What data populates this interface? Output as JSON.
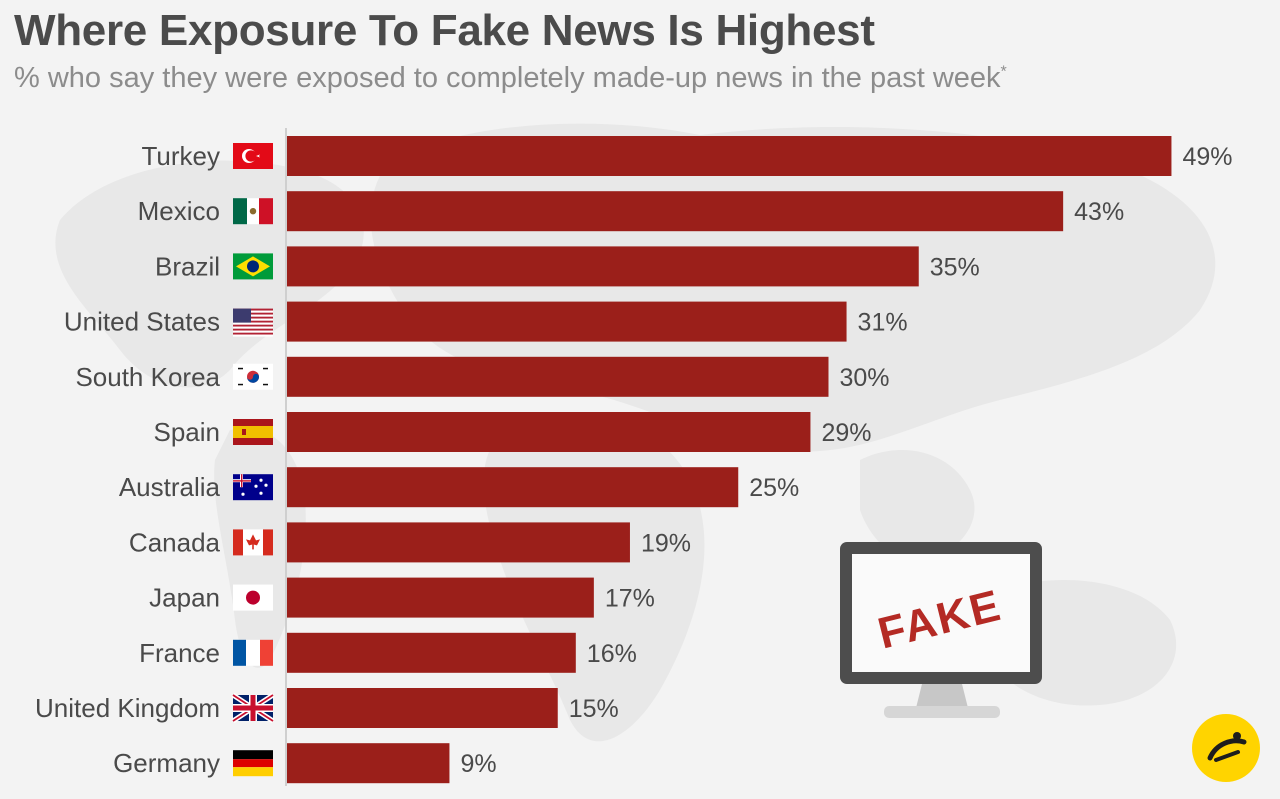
{
  "header": {
    "title": "Where Exposure To Fake News Is Highest",
    "subtitle": "% who say they were exposed to completely made-up news in the past week",
    "subtitle_mark": "*"
  },
  "chart_data": {
    "type": "bar",
    "orientation": "horizontal",
    "categories": [
      "Turkey",
      "Mexico",
      "Brazil",
      "United States",
      "South Korea",
      "Spain",
      "Australia",
      "Canada",
      "Japan",
      "France",
      "United Kingdom",
      "Germany"
    ],
    "values": [
      49,
      43,
      35,
      31,
      30,
      29,
      25,
      19,
      17,
      16,
      15,
      9
    ],
    "value_labels": [
      "49%",
      "43%",
      "35%",
      "31%",
      "30%",
      "29%",
      "25%",
      "19%",
      "17%",
      "16%",
      "15%",
      "9%"
    ],
    "flag_icons": [
      "flag-turkey-icon",
      "flag-mexico-icon",
      "flag-brazil-icon",
      "flag-united-states-icon",
      "flag-south-korea-icon",
      "flag-spain-icon",
      "flag-australia-icon",
      "flag-canada-icon",
      "flag-japan-icon",
      "flag-france-icon",
      "flag-united-kingdom-icon",
      "flag-germany-icon"
    ],
    "xlim": [
      0,
      50
    ],
    "bar_color": "#9b1f1a",
    "grid": false,
    "legend": "none"
  },
  "illustration": {
    "monitor_text": "FAKE",
    "monitor_text_color": "#b42a24",
    "icon": "monitor-icon"
  },
  "logo": {
    "text": "ح",
    "color": "#ffd400",
    "icon": "logo-icon"
  },
  "colors": {
    "background": "#f3f3f3",
    "map": "#e9e9e9",
    "title": "#4b4b4b",
    "subtitle": "#8c8c8c"
  }
}
